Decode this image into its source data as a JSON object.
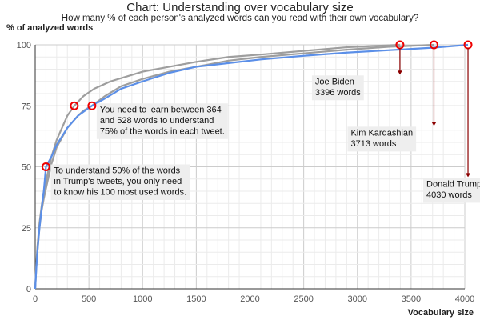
{
  "chart_data": {
    "type": "line",
    "title": "Chart: Understanding over vocabulary size",
    "subtitle": "How many % of each person's analyzed words can you read with their own vocabulary?",
    "ylabel": "% of analyzed words",
    "xlabel": "Vocabulary size",
    "xlim": [
      0,
      4000
    ],
    "ylim": [
      0,
      100
    ],
    "xticks": [
      0,
      500,
      1000,
      1500,
      2000,
      2500,
      3000,
      3500,
      4000
    ],
    "yticks": [
      0,
      25,
      50,
      75,
      100
    ],
    "grid": true,
    "colors": {
      "blue": "#5b8fe8",
      "gray": "#9e9e9e",
      "marker": "#ee0000",
      "pointer": "#8b0000",
      "annotation_bg": "#eeeeee"
    },
    "series": [
      {
        "name": "Joe Biden",
        "color": "#9e9e9e",
        "x": [
          0,
          10,
          20,
          40,
          60,
          80,
          100,
          150,
          200,
          250,
          300,
          364,
          450,
          550,
          700,
          850,
          1000,
          1250,
          1500,
          1800,
          2100,
          2500,
          2900,
          3200,
          3396
        ],
        "y": [
          0,
          10,
          17,
          27,
          34,
          40,
          44,
          54,
          61,
          66,
          71,
          75,
          79,
          82,
          85,
          87,
          89,
          91,
          93,
          95,
          96,
          97.5,
          99,
          99.6,
          100
        ]
      },
      {
        "name": "Kim Kardashian",
        "color": "#9e9e9e",
        "x": [
          0,
          10,
          20,
          40,
          60,
          80,
          100,
          150,
          200,
          300,
          400,
          450,
          528,
          650,
          800,
          1000,
          1250,
          1500,
          1800,
          2100,
          2500,
          2900,
          3300,
          3713
        ],
        "y": [
          0,
          9,
          15,
          25,
          32,
          37,
          41,
          51,
          58,
          66,
          71,
          73,
          75,
          79,
          83,
          86,
          89,
          91,
          93.5,
          95,
          96.5,
          98,
          99.2,
          100
        ]
      },
      {
        "name": "Donald Trump",
        "color": "#5b8fe8",
        "x": [
          0,
          10,
          20,
          40,
          60,
          80,
          100,
          150,
          200,
          300,
          400,
          528,
          650,
          800,
          1000,
          1250,
          1500,
          1800,
          2100,
          2500,
          2900,
          3300,
          3700,
          4030
        ],
        "y": [
          0,
          8,
          15,
          25,
          33,
          40,
          50,
          54,
          59,
          66,
          71,
          75,
          78,
          82,
          85,
          88.5,
          91,
          92.5,
          94,
          95.5,
          96.8,
          97.8,
          98.8,
          100
        ]
      }
    ],
    "markers": [
      {
        "x": 100,
        "y": 50
      },
      {
        "x": 364,
        "y": 75
      },
      {
        "x": 528,
        "y": 75
      },
      {
        "x": 3396,
        "y": 100
      },
      {
        "x": 3713,
        "y": 100
      },
      {
        "x": 4030,
        "y": 100
      }
    ],
    "annotations": [
      {
        "lines": [
          "To understand 50% of the words",
          "in Trump's tweets, you only need",
          "to know his 100 most used words."
        ],
        "x": 100,
        "y": 50,
        "anchor_x": 100,
        "anchor_y": 50
      },
      {
        "lines": [
          "You need to learn between 364",
          "and 528 words to understand",
          "75% of the words in each tweet."
        ],
        "x": 528,
        "y": 75,
        "anchor_x": 528,
        "anchor_y": 75
      },
      {
        "lines": [
          "Joe Biden",
          "3396 words"
        ],
        "x": 3396,
        "y": 84,
        "anchor_x": 3396,
        "anchor_y": 100
      },
      {
        "lines": [
          "Kim Kardashian",
          "3713 words"
        ],
        "x": 3713,
        "y": 63,
        "anchor_x": 3713,
        "anchor_y": 100
      },
      {
        "lines": [
          "Donald Trump",
          "4030 words"
        ],
        "x": 4030,
        "y": 42,
        "anchor_x": 4030,
        "anchor_y": 100
      }
    ]
  }
}
